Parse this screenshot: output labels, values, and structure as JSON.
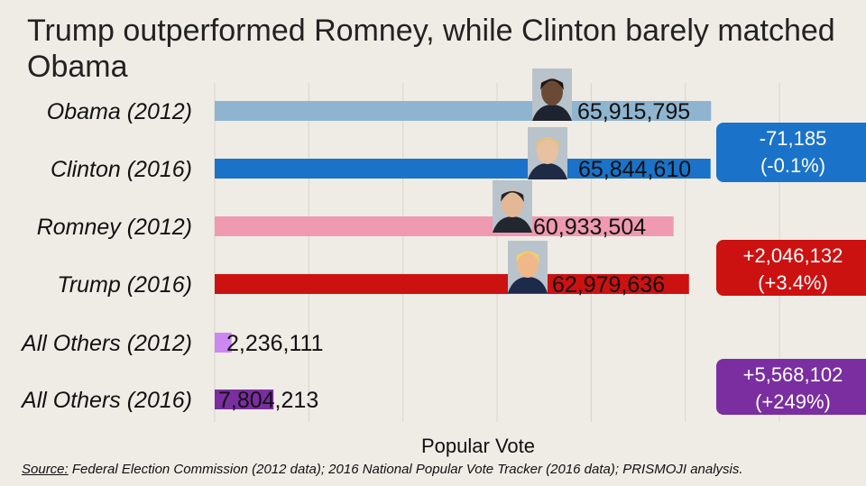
{
  "title": "Trump outperformed Romney, while Clinton barely matched Obama",
  "chart_data": {
    "type": "bar",
    "orientation": "horizontal",
    "xlabel": "Popular Vote",
    "xlim": [
      0,
      75000000
    ],
    "grid": true,
    "categories": [
      "Obama (2012)",
      "Clinton (2016)",
      "Romney (2012)",
      "Trump (2016)",
      "All Others (2012)",
      "All Others (2016)"
    ],
    "values": [
      65915795,
      65844610,
      60933504,
      62979636,
      2236111,
      7804213
    ],
    "value_labels": [
      "65,915,795",
      "65,844,610",
      "60,933,504",
      "62,979,636",
      "2,236,111",
      "7,804,213"
    ],
    "colors": [
      "#8fb4cf",
      "#1a73c8",
      "#ef9ab0",
      "#cc1111",
      "#cc88f2",
      "#7a2ea0"
    ],
    "portraits": [
      {
        "category": "Obama (2012)",
        "icon": "obama-portrait-icon"
      },
      {
        "category": "Clinton (2016)",
        "icon": "clinton-portrait-icon"
      },
      {
        "category": "Romney (2012)",
        "icon": "romney-portrait-icon"
      },
      {
        "category": "Trump (2016)",
        "icon": "trump-portrait-icon"
      }
    ],
    "callouts": [
      {
        "name": "democrat-change",
        "line1": "-71,185",
        "line2": "(-0.1%)",
        "color": "#1a73c8"
      },
      {
        "name": "republican-change",
        "line1": "+2,046,132",
        "line2": "(+3.4%)",
        "color": "#cc1111"
      },
      {
        "name": "others-change",
        "line1": "+5,568,102",
        "line2": "(+249%)",
        "color": "#7a2ea0"
      }
    ]
  },
  "source": {
    "key": "Source:",
    "text": " Federal Election Commission (2012 data); 2016 National Popular Vote Tracker (2016 data); PRISMOJI analysis."
  }
}
